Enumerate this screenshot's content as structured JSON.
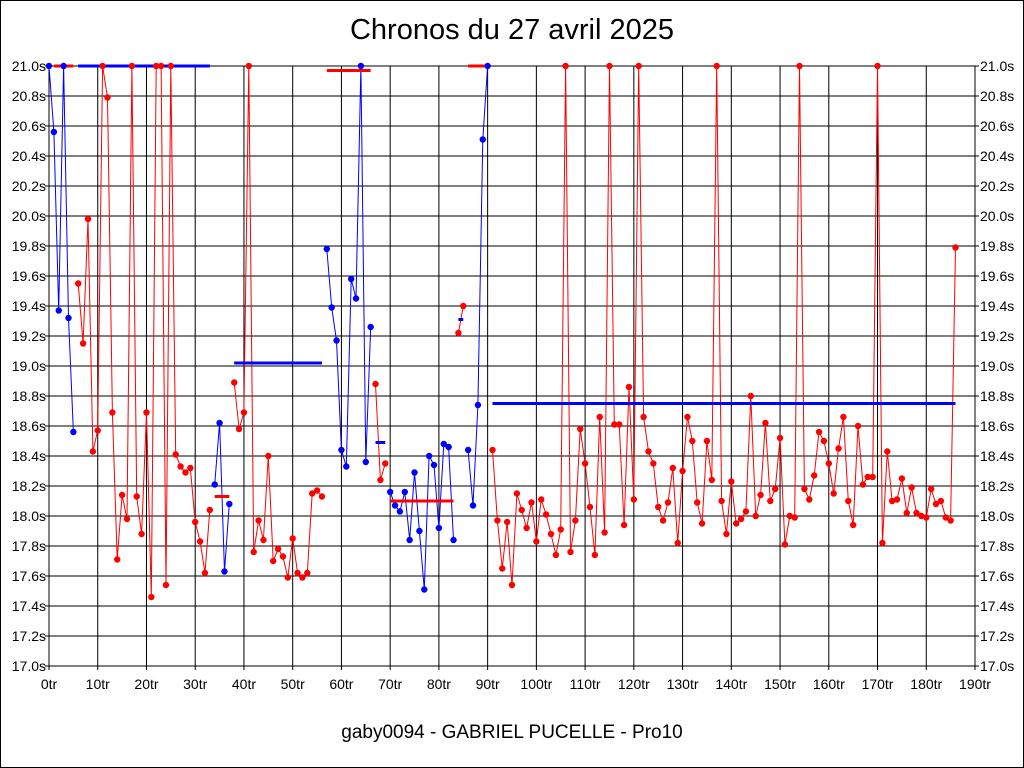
{
  "chart_data": {
    "type": "line",
    "title": "Chronos du 27 avril 2025",
    "footer": "gaby0094 - GABRIEL PUCELLE - Pro10",
    "xlim": [
      0,
      190
    ],
    "ylim": [
      17.0,
      21.0
    ],
    "x_ticks": [
      0,
      10,
      20,
      30,
      40,
      50,
      60,
      70,
      80,
      90,
      100,
      110,
      120,
      130,
      140,
      150,
      160,
      170,
      180,
      190
    ],
    "x_tick_labels": [
      "0tr",
      "10tr",
      "20tr",
      "30tr",
      "40tr",
      "50tr",
      "60tr",
      "70tr",
      "80tr",
      "90tr",
      "100tr",
      "110tr",
      "120tr",
      "130tr",
      "140tr",
      "150tr",
      "160tr",
      "170tr",
      "180tr",
      "190tr"
    ],
    "y_ticks": [
      17.0,
      17.2,
      17.4,
      17.6,
      17.8,
      18.0,
      18.2,
      18.4,
      18.6,
      18.8,
      19.0,
      19.2,
      19.4,
      19.6,
      19.8,
      20.0,
      20.2,
      20.4,
      20.6,
      20.8,
      21.0
    ],
    "y_tick_labels": [
      "17.0s",
      "17.2s",
      "17.4s",
      "17.6s",
      "17.8s",
      "18.0s",
      "18.2s",
      "18.4s",
      "18.6s",
      "18.8s",
      "19.0s",
      "19.2s",
      "19.4s",
      "19.6s",
      "19.8s",
      "20.0s",
      "20.2s",
      "20.4s",
      "20.6s",
      "20.8s",
      "21.0s"
    ],
    "grid": true,
    "colors": {
      "blue": "#0000ff",
      "red": "#ff0000"
    },
    "series": [
      {
        "color": "#0000ff",
        "points": [
          [
            0,
            21.0
          ],
          [
            1,
            20.56
          ],
          [
            2,
            19.37
          ],
          [
            3,
            21.0
          ],
          [
            4,
            19.32
          ],
          [
            5,
            18.56
          ]
        ]
      },
      {
        "color": "#ff0000",
        "points": [
          [
            6,
            19.55
          ],
          [
            7,
            19.15
          ],
          [
            8,
            19.98
          ],
          [
            9,
            18.43
          ],
          [
            10,
            18.57
          ],
          [
            11,
            21.0
          ],
          [
            12,
            20.79
          ],
          [
            13,
            18.69
          ],
          [
            14,
            17.71
          ],
          [
            15,
            18.14
          ],
          [
            16,
            17.98
          ],
          [
            17,
            21.0
          ],
          [
            18,
            18.13
          ],
          [
            19,
            17.88
          ],
          [
            20,
            18.69
          ],
          [
            21,
            17.46
          ],
          [
            22,
            21.0
          ],
          [
            23,
            21.0
          ],
          [
            24,
            17.54
          ],
          [
            25,
            21.0
          ],
          [
            26,
            18.41
          ],
          [
            27,
            18.33
          ],
          [
            28,
            18.29
          ],
          [
            29,
            18.32
          ],
          [
            30,
            17.96
          ],
          [
            31,
            17.83
          ],
          [
            32,
            17.62
          ],
          [
            33,
            18.04
          ]
        ]
      },
      {
        "color": "#0000ff",
        "points": [
          [
            34,
            18.21
          ],
          [
            35,
            18.62
          ],
          [
            36,
            17.63
          ],
          [
            37,
            18.08
          ]
        ]
      },
      {
        "color": "#ff0000",
        "points": [
          [
            38,
            18.89
          ],
          [
            39,
            18.58
          ],
          [
            40,
            18.69
          ],
          [
            41,
            21.0
          ],
          [
            42,
            17.76
          ],
          [
            43,
            17.97
          ],
          [
            44,
            17.84
          ],
          [
            45,
            18.4
          ],
          [
            46,
            17.7
          ],
          [
            47,
            17.78
          ],
          [
            48,
            17.73
          ],
          [
            49,
            17.59
          ],
          [
            50,
            17.85
          ],
          [
            51,
            17.62
          ],
          [
            52,
            17.59
          ],
          [
            53,
            17.62
          ],
          [
            54,
            18.15
          ],
          [
            55,
            18.17
          ],
          [
            56,
            18.13
          ]
        ]
      },
      {
        "color": "#0000ff",
        "points": [
          [
            57,
            19.78
          ],
          [
            58,
            19.39
          ],
          [
            59,
            19.17
          ],
          [
            60,
            18.44
          ],
          [
            61,
            18.33
          ],
          [
            62,
            19.58
          ],
          [
            63,
            19.45
          ],
          [
            64,
            21.0
          ],
          [
            65,
            18.36
          ],
          [
            66,
            19.26
          ]
        ]
      },
      {
        "color": "#ff0000",
        "points": [
          [
            67,
            18.88
          ],
          [
            68,
            18.24
          ],
          [
            69,
            18.35
          ]
        ]
      },
      {
        "color": "#0000ff",
        "points": [
          [
            70,
            18.16
          ],
          [
            71,
            18.07
          ],
          [
            72,
            18.03
          ],
          [
            73,
            18.16
          ],
          [
            74,
            17.84
          ],
          [
            75,
            18.29
          ],
          [
            76,
            17.9
          ],
          [
            77,
            17.51
          ],
          [
            78,
            18.4
          ],
          [
            79,
            18.34
          ],
          [
            80,
            17.92
          ],
          [
            81,
            18.48
          ],
          [
            82,
            18.46
          ],
          [
            83,
            17.84
          ]
        ]
      },
      {
        "color": "#ff0000",
        "points": [
          [
            84,
            19.22
          ],
          [
            85,
            19.4
          ]
        ]
      },
      {
        "color": "#0000ff",
        "points": [
          [
            86,
            18.44
          ],
          [
            87,
            18.07
          ],
          [
            88,
            18.74
          ],
          [
            89,
            20.51
          ],
          [
            90,
            21.0
          ]
        ]
      },
      {
        "color": "#ff0000",
        "points": [
          [
            91,
            18.44
          ],
          [
            92,
            17.97
          ],
          [
            93,
            17.65
          ],
          [
            94,
            17.96
          ],
          [
            95,
            17.54
          ],
          [
            96,
            18.15
          ],
          [
            97,
            18.04
          ],
          [
            98,
            17.92
          ],
          [
            99,
            18.09
          ],
          [
            100,
            17.83
          ],
          [
            101,
            18.11
          ],
          [
            102,
            18.01
          ],
          [
            103,
            17.88
          ],
          [
            104,
            17.74
          ],
          [
            105,
            17.91
          ],
          [
            106,
            21.0
          ],
          [
            107,
            17.76
          ],
          [
            108,
            17.97
          ],
          [
            109,
            18.58
          ],
          [
            110,
            18.35
          ],
          [
            111,
            18.06
          ],
          [
            112,
            17.74
          ],
          [
            113,
            18.66
          ],
          [
            114,
            17.89
          ],
          [
            115,
            21.0
          ],
          [
            116,
            18.61
          ],
          [
            117,
            18.61
          ],
          [
            118,
            17.94
          ],
          [
            119,
            18.86
          ],
          [
            120,
            18.11
          ],
          [
            121,
            21.0
          ],
          [
            122,
            18.66
          ],
          [
            123,
            18.43
          ],
          [
            124,
            18.35
          ],
          [
            125,
            18.06
          ],
          [
            126,
            17.97
          ],
          [
            127,
            18.09
          ],
          [
            128,
            18.32
          ],
          [
            129,
            17.82
          ],
          [
            130,
            18.3
          ],
          [
            131,
            18.66
          ],
          [
            132,
            18.5
          ],
          [
            133,
            18.09
          ],
          [
            134,
            17.95
          ],
          [
            135,
            18.5
          ],
          [
            136,
            18.24
          ],
          [
            137,
            21.0
          ],
          [
            138,
            18.1
          ],
          [
            139,
            17.88
          ],
          [
            140,
            18.23
          ],
          [
            141,
            17.95
          ],
          [
            142,
            17.98
          ],
          [
            143,
            18.03
          ],
          [
            144,
            18.8
          ],
          [
            145,
            18.0
          ],
          [
            146,
            18.14
          ],
          [
            147,
            18.62
          ],
          [
            148,
            18.1
          ],
          [
            149,
            18.18
          ],
          [
            150,
            18.52
          ],
          [
            151,
            17.81
          ],
          [
            152,
            18.0
          ],
          [
            153,
            17.99
          ],
          [
            154,
            21.0
          ],
          [
            155,
            18.18
          ],
          [
            156,
            18.11
          ],
          [
            157,
            18.27
          ],
          [
            158,
            18.56
          ],
          [
            159,
            18.5
          ],
          [
            160,
            18.35
          ],
          [
            161,
            18.15
          ],
          [
            162,
            18.45
          ],
          [
            163,
            18.66
          ],
          [
            164,
            18.1
          ],
          [
            165,
            17.94
          ],
          [
            166,
            18.6
          ],
          [
            167,
            18.21
          ],
          [
            168,
            18.26
          ],
          [
            169,
            18.26
          ],
          [
            170,
            21.0
          ],
          [
            171,
            17.82
          ],
          [
            172,
            18.43
          ],
          [
            173,
            18.1
          ],
          [
            174,
            18.11
          ],
          [
            175,
            18.25
          ],
          [
            176,
            18.02
          ],
          [
            177,
            18.19
          ],
          [
            178,
            18.02
          ],
          [
            179,
            18.0
          ],
          [
            180,
            17.99
          ],
          [
            181,
            18.18
          ],
          [
            182,
            18.08
          ],
          [
            183,
            18.1
          ],
          [
            184,
            17.99
          ],
          [
            185,
            17.97
          ],
          [
            186,
            19.79
          ]
        ]
      }
    ],
    "average_segments": [
      {
        "color": "#0000ff",
        "x": [
          6,
          33
        ],
        "y": 21.0
      },
      {
        "color": "#ff0000",
        "x": [
          1,
          5
        ],
        "y": 21.0
      },
      {
        "color": "#0000ff",
        "x": [
          38,
          56
        ],
        "y": 19.02
      },
      {
        "color": "#ff0000",
        "x": [
          34,
          37
        ],
        "y": 18.13
      },
      {
        "color": "#ff0000",
        "x": [
          57,
          66
        ],
        "y": 20.97
      },
      {
        "color": "#0000ff",
        "x": [
          67,
          69
        ],
        "y": 18.49
      },
      {
        "color": "#ff0000",
        "x": [
          70,
          83
        ],
        "y": 18.1
      },
      {
        "color": "#0000ff",
        "x": [
          84,
          85
        ],
        "y": 19.31
      },
      {
        "color": "#ff0000",
        "x": [
          86,
          90
        ],
        "y": 21.0
      },
      {
        "color": "#0000ff",
        "x": [
          91,
          186
        ],
        "y": 18.75
      }
    ]
  }
}
